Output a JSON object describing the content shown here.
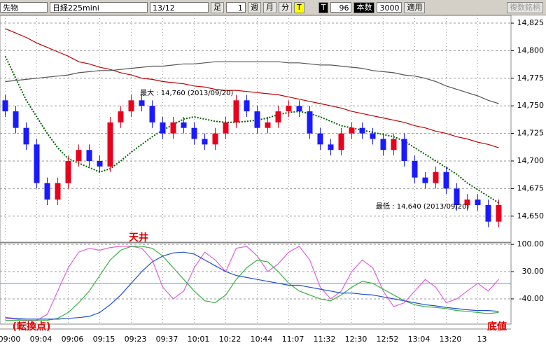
{
  "toolbar": {
    "market": "先物",
    "symbol": "日経225mini",
    "contract": "13/12",
    "bar_label": "足",
    "bar_value": "1",
    "week": "週",
    "month": "月",
    "minute": "分",
    "tick": "T",
    "t_button": "T",
    "count_a": "96",
    "count_label": "本数",
    "count_b": "3000",
    "apply": "適用",
    "multi": "複数銘柄"
  },
  "chart_data": [
    {
      "type": "candlestick",
      "categories": [
        "09:00",
        null,
        null,
        "09:04",
        null,
        null,
        "09:06",
        null,
        null,
        "09:15",
        null,
        null,
        "09:23",
        null,
        null,
        "09:37",
        null,
        null,
        "10:01",
        null,
        null,
        "10:22",
        null,
        null,
        "10:44",
        null,
        null,
        "11:07",
        null,
        null,
        "11:32",
        null,
        null,
        "12:30",
        null,
        null,
        "12:52",
        null,
        null,
        "13:04",
        null,
        null,
        "13:20",
        null,
        null,
        "13",
        null,
        null
      ],
      "open": [
        14755,
        14745,
        14730,
        14715,
        14680,
        14665,
        14680,
        14700,
        14710,
        14700,
        14695,
        14735,
        14745,
        14755,
        14750,
        14735,
        14725,
        14735,
        14730,
        14720,
        14715,
        14725,
        14735,
        14755,
        14745,
        14730,
        14735,
        14745,
        14750,
        14745,
        14725,
        14715,
        14710,
        14725,
        14730,
        14725,
        14720,
        14710,
        14720,
        14700,
        14685,
        14680,
        14690,
        14675,
        14660,
        14665,
        14660,
        14645
      ],
      "high": [
        14760,
        14750,
        14735,
        14720,
        14685,
        14685,
        14705,
        14715,
        14715,
        14705,
        14740,
        14750,
        14760,
        14760,
        14755,
        14740,
        14740,
        14740,
        14735,
        14725,
        14730,
        14740,
        14760,
        14760,
        14750,
        14740,
        14750,
        14755,
        14755,
        14750,
        14730,
        14720,
        14730,
        14735,
        14735,
        14730,
        14725,
        14725,
        14725,
        14705,
        14690,
        14695,
        14695,
        14680,
        14670,
        14670,
        14665,
        14665
      ],
      "low": [
        14740,
        14725,
        14710,
        14675,
        14660,
        14660,
        14675,
        14695,
        14695,
        14690,
        14690,
        14730,
        14740,
        14745,
        14730,
        14720,
        14720,
        14725,
        14715,
        14710,
        14710,
        14720,
        14730,
        14740,
        14725,
        14725,
        14730,
        14740,
        14740,
        14720,
        14710,
        14705,
        14705,
        14720,
        14720,
        14715,
        14705,
        14705,
        14695,
        14680,
        14675,
        14675,
        14670,
        14655,
        14655,
        14655,
        14640,
        14640
      ],
      "close": [
        14745,
        14730,
        14715,
        14680,
        14665,
        14680,
        14700,
        14710,
        14700,
        14695,
        14735,
        14745,
        14755,
        14750,
        14735,
        14725,
        14735,
        14730,
        14720,
        14715,
        14725,
        14735,
        14755,
        14745,
        14730,
        14735,
        14745,
        14750,
        14745,
        14725,
        14715,
        14710,
        14725,
        14730,
        14725,
        14720,
        14710,
        14720,
        14700,
        14685,
        14680,
        14690,
        14675,
        14660,
        14665,
        14660,
        14645,
        14660
      ],
      "up_color": "#e8001c",
      "down_color": "#1a1aff",
      "series": [
        {
          "color": "#c00000",
          "style": "solid",
          "values": [
            14820,
            14816,
            14812,
            14807,
            14803,
            14799,
            14795,
            14790,
            14788,
            14785,
            14783,
            14780,
            14778,
            14775,
            14774,
            14772,
            14771,
            14770,
            14768,
            14767,
            14765,
            14764,
            14764,
            14763,
            14762,
            14761,
            14760,
            14758,
            14756,
            14754,
            14752,
            14750,
            14748,
            14745,
            14743,
            14741,
            14739,
            14737,
            14735,
            14732,
            14730,
            14727,
            14725,
            14722,
            14720,
            14717,
            14715,
            14712
          ]
        },
        {
          "color": "#555555",
          "style": "solid",
          "values": [
            14772,
            14773,
            14774,
            14775,
            14776,
            14777,
            14778,
            14780,
            14781,
            14782,
            14782,
            14783,
            14784,
            14785,
            14786,
            14786,
            14787,
            14788,
            14788,
            14789,
            14790,
            14790,
            14790,
            14790,
            14790,
            14790,
            14790,
            14789,
            14789,
            14788,
            14787,
            14787,
            14786,
            14785,
            14784,
            14782,
            14781,
            14780,
            14778,
            14777,
            14775,
            14772,
            14768,
            14765,
            14762,
            14759,
            14755,
            14752
          ]
        },
        {
          "color": "#006400",
          "style": "dotted",
          "values": [
            14795,
            14775,
            14755,
            14740,
            14725,
            14712,
            14702,
            14698,
            14694,
            14690,
            14693,
            14700,
            14708,
            14715,
            14722,
            14728,
            14733,
            14738,
            14740,
            14738,
            14736,
            14735,
            14735,
            14736,
            14737,
            14739,
            14742,
            14744,
            14745,
            14743,
            14740,
            14736,
            14732,
            14730,
            14728,
            14726,
            14724,
            14722,
            14718,
            14712,
            14706,
            14700,
            14694,
            14688,
            14680,
            14674,
            14668,
            14662
          ]
        }
      ],
      "ylim": [
        14627,
        14832
      ],
      "yticks": [
        {
          "value": 14650,
          "label": "14,650"
        },
        {
          "value": 14675,
          "label": "14,675"
        },
        {
          "value": 14700,
          "label": "14,700"
        },
        {
          "value": 14725,
          "label": "14,725"
        },
        {
          "value": 14750,
          "label": "14,750"
        },
        {
          "value": 14775,
          "label": "14,775"
        },
        {
          "value": 14800,
          "label": "14,800"
        },
        {
          "value": 14825,
          "label": "14,825"
        }
      ],
      "grid": true,
      "annotations": [
        "最大 : 14,760 (2013/09/20)",
        "最低 : 14,640 (2013/09/20)"
      ]
    },
    {
      "type": "line",
      "series": [
        {
          "color": "#e060e0",
          "values": [
            -90,
            -92,
            -95,
            -95,
            -80,
            -20,
            40,
            80,
            90,
            85,
            92,
            95,
            95,
            90,
            60,
            -10,
            -40,
            -20,
            40,
            80,
            60,
            30,
            90,
            95,
            70,
            30,
            50,
            80,
            95,
            60,
            -10,
            -40,
            -20,
            30,
            60,
            40,
            -20,
            -60,
            -50,
            -20,
            10,
            -10,
            -50,
            -40,
            -20,
            0,
            -20,
            10
          ]
        },
        {
          "color": "#3cb043",
          "values": [
            -95,
            -95,
            -96,
            -96,
            -95,
            -90,
            -75,
            -50,
            -20,
            20,
            60,
            85,
            95,
            95,
            90,
            70,
            40,
            10,
            -20,
            -45,
            -50,
            -30,
            10,
            40,
            60,
            55,
            30,
            0,
            -20,
            -30,
            -40,
            -45,
            -30,
            -10,
            5,
            0,
            -15,
            -30,
            -45,
            -55,
            -60,
            -62,
            -65,
            -70,
            -72,
            -75,
            -78,
            -75
          ]
        },
        {
          "color": "#1f4fd0",
          "values": [
            -88,
            -90,
            -92,
            -92,
            -92,
            -92,
            -90,
            -88,
            -85,
            -75,
            -55,
            -30,
            0,
            30,
            55,
            70,
            78,
            80,
            75,
            60,
            45,
            30,
            20,
            15,
            10,
            5,
            0,
            -5,
            -5,
            -10,
            -15,
            -20,
            -25,
            -25,
            -28,
            -30,
            -35,
            -40,
            -45,
            -50,
            -55,
            -58,
            -62,
            -65,
            -68,
            -70,
            -70,
            -72
          ]
        }
      ],
      "reference_line": 0,
      "reference_color": "#3aa0ff",
      "ylim": [
        -103,
        102
      ],
      "yticks": [
        {
          "value": -40,
          "label": "-40.00"
        },
        {
          "value": 30,
          "label": "30.00"
        },
        {
          "value": 100,
          "label": "100.00"
        }
      ],
      "grid": true,
      "annotations": [
        "天井",
        "(転換点)",
        "底値"
      ]
    }
  ]
}
